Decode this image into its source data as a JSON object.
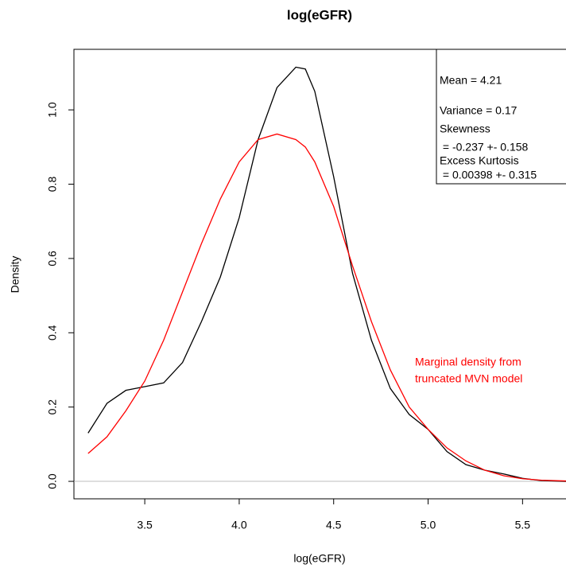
{
  "chart_data": {
    "type": "line",
    "title": "log(eGFR)",
    "x_label": "log(eGFR)",
    "y_label": "Density",
    "x": [
      3.2,
      3.3,
      3.4,
      3.5,
      3.6,
      3.7,
      3.8,
      3.9,
      4.0,
      4.1,
      4.2,
      4.3,
      4.35,
      4.4,
      4.5,
      4.6,
      4.7,
      4.8,
      4.9,
      5.0,
      5.1,
      5.2,
      5.3,
      5.4,
      5.5,
      5.6,
      5.73
    ],
    "series": [
      {
        "name": "log(eGFR)",
        "color": "#000000",
        "values": [
          0.13,
          0.21,
          0.245,
          0.255,
          0.265,
          0.32,
          0.43,
          0.55,
          0.71,
          0.92,
          1.06,
          1.115,
          1.11,
          1.05,
          0.82,
          0.56,
          0.38,
          0.25,
          0.18,
          0.14,
          0.08,
          0.045,
          0.03,
          0.02,
          0.008,
          0.002,
          0
        ]
      },
      {
        "name": "Marginal density from truncated MVN model",
        "color": "#ff0000",
        "values": [
          0.075,
          0.12,
          0.19,
          0.27,
          0.38,
          0.51,
          0.64,
          0.76,
          0.86,
          0.92,
          0.935,
          0.92,
          0.9,
          0.86,
          0.74,
          0.58,
          0.43,
          0.3,
          0.2,
          0.14,
          0.09,
          0.055,
          0.03,
          0.015,
          0.007,
          0.003,
          0.001
        ]
      }
    ],
    "xlim": [
      3.125,
      5.73
    ],
    "ylim": [
      -0.047,
      1.163
    ],
    "xticks": [
      {
        "value": 3.5,
        "label": "3.5"
      },
      {
        "value": 4.0,
        "label": "4.0"
      },
      {
        "value": 4.5,
        "label": "4.5"
      },
      {
        "value": 5.0,
        "label": "5.0"
      },
      {
        "value": 5.5,
        "label": "5.5"
      }
    ],
    "yticks": [
      {
        "value": 0.0,
        "label": "0.0"
      },
      {
        "value": 0.2,
        "label": "0.2"
      },
      {
        "value": 0.4,
        "label": "0.4"
      },
      {
        "value": 0.6,
        "label": "0.6"
      },
      {
        "value": 0.8,
        "label": "0.8"
      },
      {
        "value": 1.0,
        "label": "1.0"
      }
    ],
    "reference_line": {
      "value": 0,
      "color": "#bebebe"
    },
    "stats_box": [
      "Mean = 4.21",
      "Variance = 0.17",
      "Skewness",
      " = -0.237 +- 0.158",
      "Excess Kurtosis",
      " = 0.00398 +- 0.315"
    ],
    "note": [
      "Marginal density from",
      "truncated MVN model"
    ],
    "note_color": "#ff0000"
  }
}
